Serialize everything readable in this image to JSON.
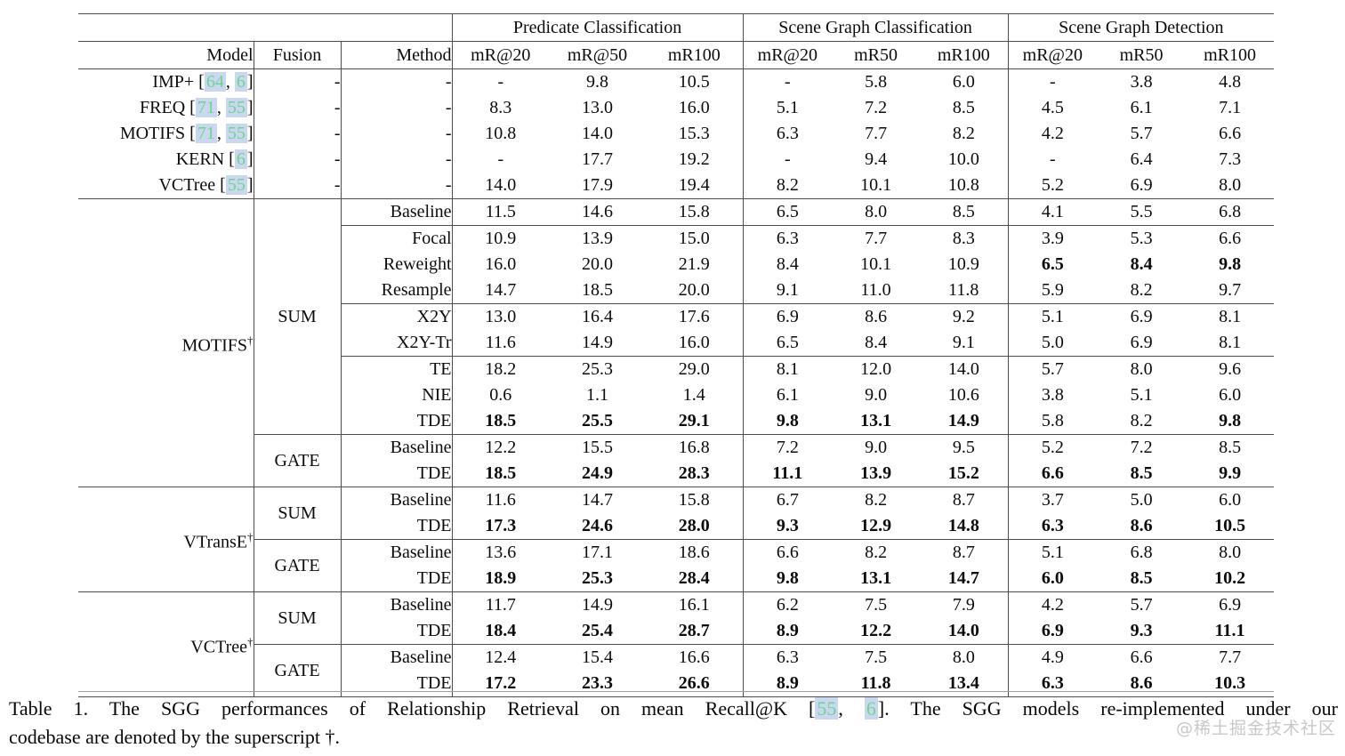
{
  "colors": {
    "cite_green": "#6fd492",
    "cite_bg": "#c9d8ef",
    "rule": "#4d4d4d",
    "watermark": "#c8c8c8"
  },
  "table": {
    "group_headers": [
      "Predicate Classification",
      "Scene Graph Classification",
      "Scene Graph Detection"
    ],
    "col_headers": [
      "Model",
      "Fusion",
      "Method",
      "mR@20",
      "mR@50",
      "mR100",
      "mR@20",
      "mR50",
      "mR100",
      "mR@20",
      "mR50",
      "mR100"
    ],
    "baseline_rows": [
      {
        "model": "IMP+",
        "refs": [
          "64",
          "6"
        ],
        "fusion": "-",
        "method": "-",
        "values": [
          "-",
          "9.8",
          "10.5",
          "-",
          "5.8",
          "6.0",
          "-",
          "3.8",
          "4.8"
        ],
        "bold": []
      },
      {
        "model": "FREQ",
        "refs": [
          "71",
          "55"
        ],
        "fusion": "-",
        "method": "-",
        "values": [
          "8.3",
          "13.0",
          "16.0",
          "5.1",
          "7.2",
          "8.5",
          "4.5",
          "6.1",
          "7.1"
        ],
        "bold": []
      },
      {
        "model": "MOTIFS",
        "refs": [
          "71",
          "55"
        ],
        "fusion": "-",
        "method": "-",
        "values": [
          "10.8",
          "14.0",
          "15.3",
          "6.3",
          "7.7",
          "8.2",
          "4.2",
          "5.7",
          "6.6"
        ],
        "bold": []
      },
      {
        "model": "KERN",
        "refs": [
          "6"
        ],
        "fusion": "-",
        "method": "-",
        "values": [
          "-",
          "17.7",
          "19.2",
          "-",
          "9.4",
          "10.0",
          "-",
          "6.4",
          "7.3"
        ],
        "bold": []
      },
      {
        "model": "VCTree",
        "refs": [
          "55"
        ],
        "fusion": "-",
        "method": "-",
        "values": [
          "14.0",
          "17.9",
          "19.4",
          "8.2",
          "10.1",
          "10.8",
          "5.2",
          "6.9",
          "8.0"
        ],
        "bold": []
      }
    ],
    "sections": [
      {
        "model": "MOTIFS",
        "dagger": true,
        "groups": [
          {
            "fusion": "SUM",
            "rows": [
              {
                "method": "Baseline",
                "values": [
                  "11.5",
                  "14.6",
                  "15.8",
                  "6.5",
                  "8.0",
                  "8.5",
                  "4.1",
                  "5.5",
                  "6.8"
                ],
                "bold": [],
                "rule_below": true
              },
              {
                "method": "Focal",
                "values": [
                  "10.9",
                  "13.9",
                  "15.0",
                  "6.3",
                  "7.7",
                  "8.3",
                  "3.9",
                  "5.3",
                  "6.6"
                ],
                "bold": []
              },
              {
                "method": "Reweight",
                "values": [
                  "16.0",
                  "20.0",
                  "21.9",
                  "8.4",
                  "10.1",
                  "10.9",
                  "6.5",
                  "8.4",
                  "9.8"
                ],
                "bold": [
                  6,
                  7,
                  8
                ]
              },
              {
                "method": "Resample",
                "values": [
                  "14.7",
                  "18.5",
                  "20.0",
                  "9.1",
                  "11.0",
                  "11.8",
                  "5.9",
                  "8.2",
                  "9.7"
                ],
                "bold": [],
                "rule_below": true
              },
              {
                "method": "X2Y",
                "values": [
                  "13.0",
                  "16.4",
                  "17.6",
                  "6.9",
                  "8.6",
                  "9.2",
                  "5.1",
                  "6.9",
                  "8.1"
                ],
                "bold": []
              },
              {
                "method": "X2Y-Tr",
                "values": [
                  "11.6",
                  "14.9",
                  "16.0",
                  "6.5",
                  "8.4",
                  "9.1",
                  "5.0",
                  "6.9",
                  "8.1"
                ],
                "bold": [],
                "rule_below": true
              },
              {
                "method": "TE",
                "values": [
                  "18.2",
                  "25.3",
                  "29.0",
                  "8.1",
                  "12.0",
                  "14.0",
                  "5.7",
                  "8.0",
                  "9.6"
                ],
                "bold": []
              },
              {
                "method": "NIE",
                "values": [
                  "0.6",
                  "1.1",
                  "1.4",
                  "6.1",
                  "9.0",
                  "10.6",
                  "3.8",
                  "5.1",
                  "6.0"
                ],
                "bold": []
              },
              {
                "method": "TDE",
                "values": [
                  "18.5",
                  "25.5",
                  "29.1",
                  "9.8",
                  "13.1",
                  "14.9",
                  "5.8",
                  "8.2",
                  "9.8"
                ],
                "bold": [
                  0,
                  1,
                  2,
                  3,
                  4,
                  5,
                  8
                ]
              }
            ]
          },
          {
            "fusion": "GATE",
            "rows": [
              {
                "method": "Baseline",
                "values": [
                  "12.2",
                  "15.5",
                  "16.8",
                  "7.2",
                  "9.0",
                  "9.5",
                  "5.2",
                  "7.2",
                  "8.5"
                ],
                "bold": []
              },
              {
                "method": "TDE",
                "values": [
                  "18.5",
                  "24.9",
                  "28.3",
                  "11.1",
                  "13.9",
                  "15.2",
                  "6.6",
                  "8.5",
                  "9.9"
                ],
                "bold": [
                  0,
                  1,
                  2,
                  3,
                  4,
                  5,
                  6,
                  7,
                  8
                ]
              }
            ]
          }
        ]
      },
      {
        "model": "VTransE",
        "dagger": true,
        "groups": [
          {
            "fusion": "SUM",
            "rows": [
              {
                "method": "Baseline",
                "values": [
                  "11.6",
                  "14.7",
                  "15.8",
                  "6.7",
                  "8.2",
                  "8.7",
                  "3.7",
                  "5.0",
                  "6.0"
                ],
                "bold": []
              },
              {
                "method": "TDE",
                "values": [
                  "17.3",
                  "24.6",
                  "28.0",
                  "9.3",
                  "12.9",
                  "14.8",
                  "6.3",
                  "8.6",
                  "10.5"
                ],
                "bold": [
                  0,
                  1,
                  2,
                  3,
                  4,
                  5,
                  6,
                  7,
                  8
                ]
              }
            ]
          },
          {
            "fusion": "GATE",
            "rows": [
              {
                "method": "Baseline",
                "values": [
                  "13.6",
                  "17.1",
                  "18.6",
                  "6.6",
                  "8.2",
                  "8.7",
                  "5.1",
                  "6.8",
                  "8.0"
                ],
                "bold": []
              },
              {
                "method": "TDE",
                "values": [
                  "18.9",
                  "25.3",
                  "28.4",
                  "9.8",
                  "13.1",
                  "14.7",
                  "6.0",
                  "8.5",
                  "10.2"
                ],
                "bold": [
                  0,
                  1,
                  2,
                  3,
                  4,
                  5,
                  6,
                  7,
                  8
                ]
              }
            ]
          }
        ]
      },
      {
        "model": "VCTree",
        "dagger": true,
        "groups": [
          {
            "fusion": "SUM",
            "rows": [
              {
                "method": "Baseline",
                "values": [
                  "11.7",
                  "14.9",
                  "16.1",
                  "6.2",
                  "7.5",
                  "7.9",
                  "4.2",
                  "5.7",
                  "6.9"
                ],
                "bold": []
              },
              {
                "method": "TDE",
                "values": [
                  "18.4",
                  "25.4",
                  "28.7",
                  "8.9",
                  "12.2",
                  "14.0",
                  "6.9",
                  "9.3",
                  "11.1"
                ],
                "bold": [
                  0,
                  1,
                  2,
                  3,
                  4,
                  5,
                  6,
                  7,
                  8
                ]
              }
            ]
          },
          {
            "fusion": "GATE",
            "rows": [
              {
                "method": "Baseline",
                "values": [
                  "12.4",
                  "15.4",
                  "16.6",
                  "6.3",
                  "7.5",
                  "8.0",
                  "4.9",
                  "6.6",
                  "7.7"
                ],
                "bold": []
              },
              {
                "method": "TDE",
                "values": [
                  "17.2",
                  "23.3",
                  "26.6",
                  "8.9",
                  "11.8",
                  "13.4",
                  "6.3",
                  "8.6",
                  "10.3"
                ],
                "bold": [
                  0,
                  1,
                  2,
                  3,
                  4,
                  5,
                  6,
                  7,
                  8
                ]
              }
            ]
          }
        ]
      }
    ]
  },
  "caption": {
    "line1_segments": [
      {
        "t": "Table 1.  The SGG performances of Relationship Retrieval on mean Recall@K ["
      },
      {
        "r": "55"
      },
      {
        "t": ", "
      },
      {
        "r": "6"
      },
      {
        "t": "].  The SGG models re-implemented under our"
      }
    ],
    "line2": "codebase are denoted by the superscript †."
  },
  "watermark": "@稀土掘金技术社区"
}
